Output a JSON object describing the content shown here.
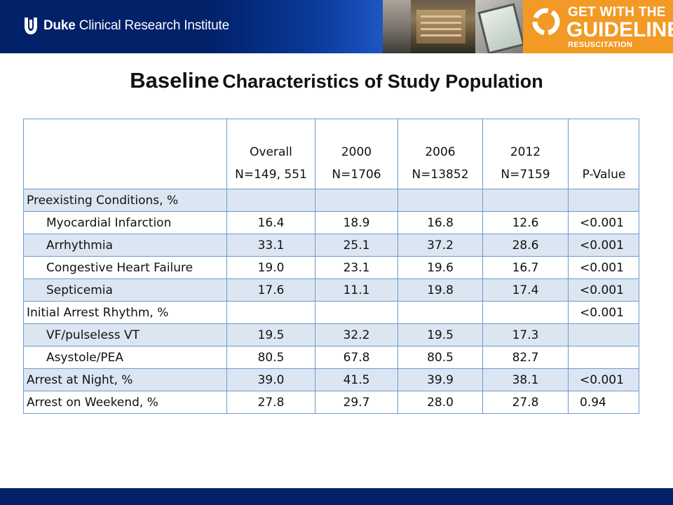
{
  "header": {
    "brand_bold": "Duke",
    "brand_rest": " Clinical Research Institute",
    "badge": {
      "line1": "GET WITH THE",
      "line2": "GUIDELINES",
      "line3": "RESUSCITATION"
    }
  },
  "title": {
    "word1": "Baseline",
    "rest": "Characteristics of Study Population"
  },
  "table": {
    "headers": [
      {
        "l1": "",
        "l2": ""
      },
      {
        "l1": "Overall",
        "l2": "N=149, 551"
      },
      {
        "l1": "2000",
        "l2": "N=1706"
      },
      {
        "l1": "2006",
        "l2": "N=13852"
      },
      {
        "l1": "2012",
        "l2": "N=7159"
      },
      {
        "l1": "",
        "l2": "P-Value"
      }
    ],
    "rows": [
      {
        "label": "Preexisting Conditions, %",
        "overall": "",
        "y2000": "",
        "y2006": "",
        "y2012": "",
        "p": ""
      },
      {
        "label": "Myocardial Infarction",
        "overall": "16.4",
        "y2000": "18.9",
        "y2006": "16.8",
        "y2012": "12.6",
        "p": "<0.001"
      },
      {
        "label": "Arrhythmia",
        "overall": "33.1",
        "y2000": "25.1",
        "y2006": "37.2",
        "y2012": "28.6",
        "p": "<0.001"
      },
      {
        "label": "Congestive Heart Failure",
        "overall": "19.0",
        "y2000": "23.1",
        "y2006": "19.6",
        "y2012": "16.7",
        "p": "<0.001"
      },
      {
        "label": "Septicemia",
        "overall": "17.6",
        "y2000": "11.1",
        "y2006": "19.8",
        "y2012": "17.4",
        "p": "<0.001"
      },
      {
        "label": "Initial Arrest Rhythm, %",
        "overall": "",
        "y2000": "",
        "y2006": "",
        "y2012": "",
        "p": "<0.001"
      },
      {
        "label": "VF/pulseless VT",
        "overall": "19.5",
        "y2000": "32.2",
        "y2006": "19.5",
        "y2012": "17.3",
        "p": ""
      },
      {
        "label": "Asystole/PEA",
        "overall": "80.5",
        "y2000": "67.8",
        "y2006": "80.5",
        "y2012": "82.7",
        "p": ""
      },
      {
        "label": "Arrest at Night, %",
        "overall": "39.0",
        "y2000": "41.5",
        "y2006": "39.9",
        "y2012": "38.1",
        "p": "<0.001"
      },
      {
        "label": "Arrest on Weekend, %",
        "overall": "27.8",
        "y2000": "29.7",
        "y2006": "28.0",
        "y2012": "27.8",
        "p": "0.94"
      }
    ]
  },
  "colors": {
    "navy": "#012169",
    "orange": "#f29a25",
    "row_shade": "#dce6f2",
    "grid": "#6f9ac9"
  }
}
